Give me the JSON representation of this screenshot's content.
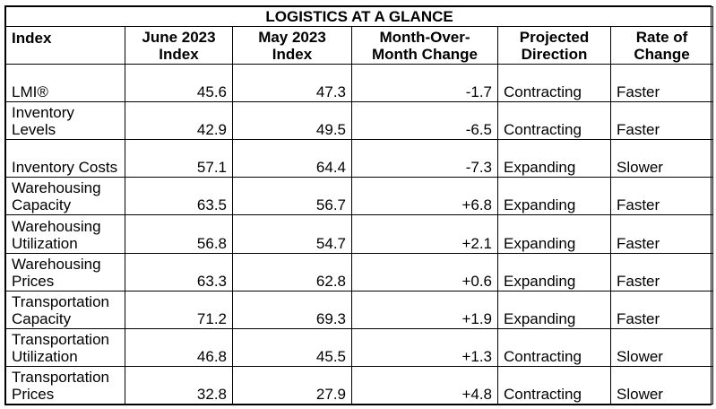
{
  "title": "LOGISTICS AT A GLANCE",
  "headers": {
    "index": "Index",
    "june": "June 2023 Index",
    "may": "May 2023 Index",
    "mom": "Month-Over-Month Change",
    "direction": "Projected Direction",
    "rate": "Rate of Change"
  },
  "rows": [
    {
      "index": "LMI®",
      "june": "45.6",
      "may": "47.3",
      "mom": "-1.7",
      "direction": "Contracting",
      "rate": "Faster"
    },
    {
      "index": "Inventory Levels",
      "june": "42.9",
      "may": "49.5",
      "mom": "-6.5",
      "direction": "Contracting",
      "rate": "Faster"
    },
    {
      "index": "Inventory Costs",
      "june": "57.1",
      "may": "64.4",
      "mom": "-7.3",
      "direction": "Expanding",
      "rate": "Slower"
    },
    {
      "index": "Warehousing Capacity",
      "june": "63.5",
      "may": "56.7",
      "mom": "+6.8",
      "direction": "Expanding",
      "rate": "Faster"
    },
    {
      "index": "Warehousing Utilization",
      "june": "56.8",
      "may": "54.7",
      "mom": "+2.1",
      "direction": "Expanding",
      "rate": "Faster"
    },
    {
      "index": "Warehousing Prices",
      "june": "63.3",
      "may": "62.8",
      "mom": "+0.6",
      "direction": "Expanding",
      "rate": "Faster"
    },
    {
      "index": "Transportation Capacity",
      "june": "71.2",
      "may": "69.3",
      "mom": "+1.9",
      "direction": "Expanding",
      "rate": "Faster"
    },
    {
      "index": "Transportation Utilization",
      "june": "46.8",
      "may": "45.5",
      "mom": "+1.3",
      "direction": "Contracting",
      "rate": "Slower"
    },
    {
      "index": "Transportation Prices",
      "june": "32.8",
      "may": "27.9",
      "mom": "+4.8",
      "direction": "Contracting",
      "rate": "Slower"
    }
  ]
}
